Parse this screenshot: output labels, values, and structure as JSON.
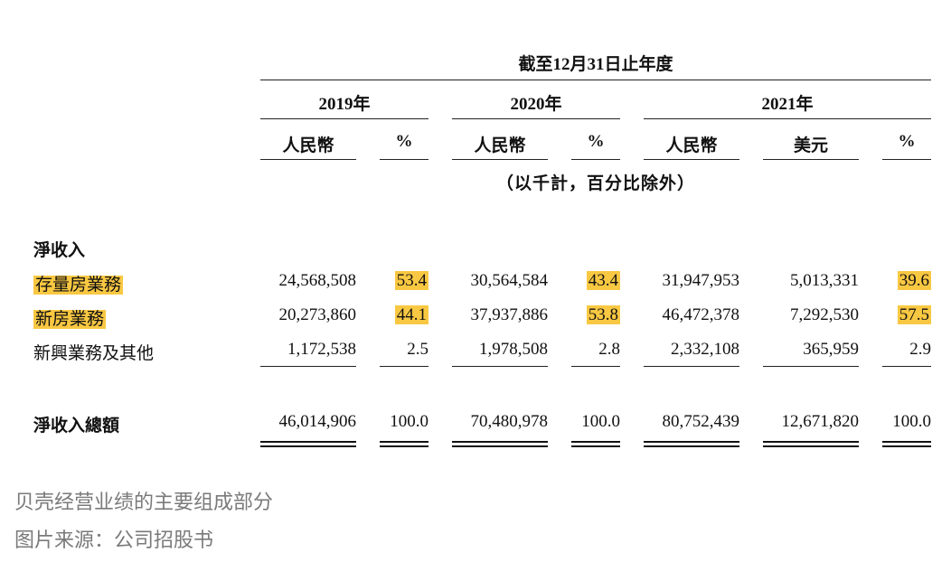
{
  "table": {
    "period_header": "截至12月31日止年度",
    "years": [
      "2019年",
      "2020年",
      "2021年"
    ],
    "columns": [
      "人民幣",
      "%",
      "人民幣",
      "%",
      "人民幣",
      "美元",
      "%"
    ],
    "units_note": "（以千計，百分比除外）",
    "section_label": "淨收入",
    "rows": [
      {
        "label": "存量房業務",
        "values": [
          "24,568,508",
          "53.4",
          "30,564,584",
          "43.4",
          "31,947,953",
          "5,013,331",
          "39.6"
        ]
      },
      {
        "label": "新房業務",
        "values": [
          "20,273,860",
          "44.1",
          "37,937,886",
          "53.8",
          "46,472,378",
          "7,292,530",
          "57.5"
        ]
      },
      {
        "label": "新興業務及其他",
        "values": [
          "1,172,538",
          "2.5",
          "1,978,508",
          "2.8",
          "2,332,108",
          "365,959",
          "2.9"
        ]
      }
    ],
    "total": {
      "label": "淨收入總額",
      "values": [
        "46,014,906",
        "100.0",
        "70,480,978",
        "100.0",
        "80,752,439",
        "12,671,820",
        "100.0"
      ]
    }
  },
  "highlight_color": "#f9c842",
  "caption": {
    "line1": "贝壳经营业绩的主要组成部分",
    "line2": "图片来源：公司招股书"
  }
}
